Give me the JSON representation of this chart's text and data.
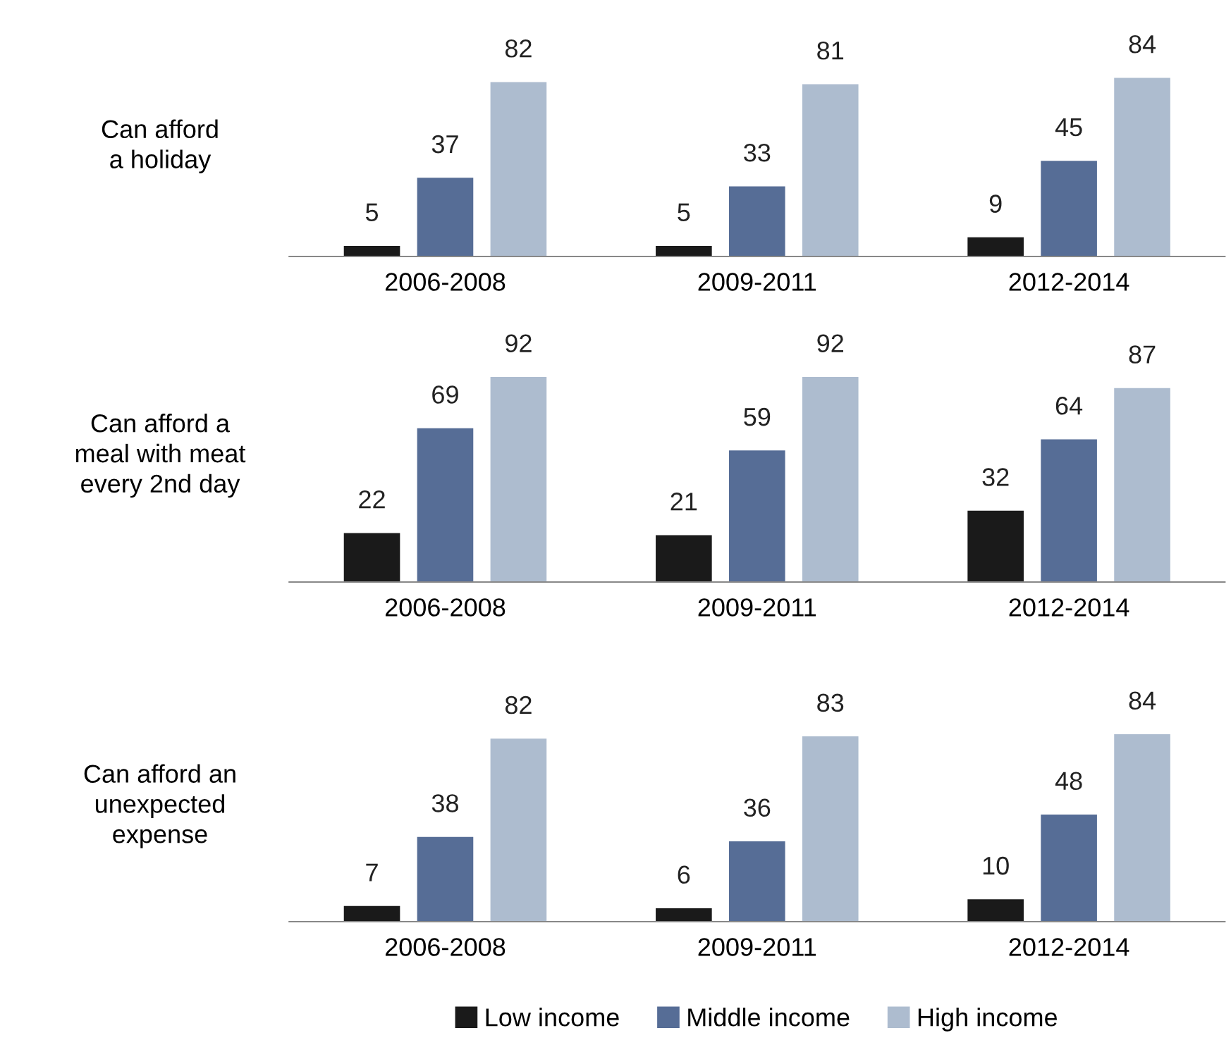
{
  "chart_data": [
    {
      "type": "bar",
      "title": "Can afford\na holiday",
      "categories": [
        "2006-2008",
        "2009-2011",
        "2012-2014"
      ],
      "data_labels": true,
      "legend": false,
      "series": [
        {
          "color": "#1a1a1a",
          "values": [
            5,
            5,
            9
          ]
        },
        {
          "color": "#566d96",
          "values": [
            37,
            33,
            45
          ]
        },
        {
          "color": "#adbccf",
          "values": [
            82,
            81,
            84
          ]
        }
      ]
    },
    {
      "type": "bar",
      "title": "Can afford a\nmeal with meat\nevery 2nd day",
      "categories": [
        "2006-2008",
        "2009-2011",
        "2012-2014"
      ],
      "data_labels": true,
      "legend": false,
      "series": [
        {
          "color": "#1a1a1a",
          "values": [
            22,
            21,
            32
          ]
        },
        {
          "color": "#566d96",
          "values": [
            69,
            59,
            64
          ]
        },
        {
          "color": "#adbccf",
          "values": [
            92,
            92,
            87
          ]
        }
      ]
    },
    {
      "type": "bar",
      "title": "Can afford an\nunexpected\nexpense",
      "categories": [
        "2006-2008",
        "2009-2011",
        "2012-2014"
      ],
      "data_labels": true,
      "legend": "bottom",
      "series": [
        {
          "name": "Low income",
          "color": "#1a1a1a",
          "values": [
            7,
            6,
            10
          ]
        },
        {
          "name": "Middle income",
          "color": "#566d96",
          "values": [
            38,
            36,
            48
          ]
        },
        {
          "name": "High income",
          "color": "#adbccf",
          "values": [
            82,
            83,
            84
          ]
        }
      ]
    }
  ]
}
